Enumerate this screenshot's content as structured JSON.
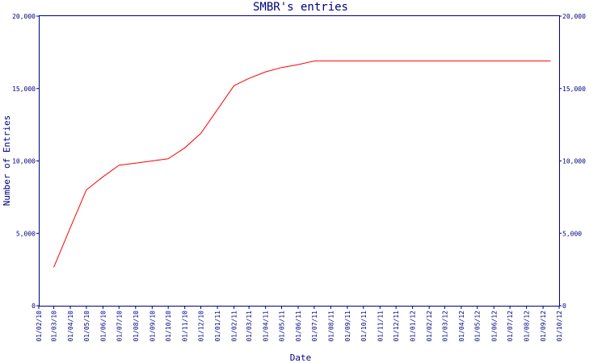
{
  "chart_data": {
    "type": "line",
    "title": "SMBR's entries",
    "xlabel": "Date",
    "ylabel": "Number of Entries",
    "ylim": [
      0,
      20000
    ],
    "y_ticks": [
      0,
      5000,
      10000,
      15000,
      20000
    ],
    "y_tick_labels": [
      "0",
      "5,000",
      "10,000",
      "15,000",
      "20,000"
    ],
    "x_tick_labels": [
      "01/02/10",
      "01/03/10",
      "01/04/10",
      "01/05/10",
      "01/06/10",
      "01/07/10",
      "01/08/10",
      "01/09/10",
      "01/10/10",
      "01/11/10",
      "01/12/10",
      "01/01/11",
      "01/02/11",
      "01/03/11",
      "01/04/11",
      "01/05/11",
      "01/06/11",
      "01/07/11",
      "01/08/11",
      "01/09/11",
      "01/10/11",
      "01/11/11",
      "01/12/11",
      "01/01/12",
      "01/02/12",
      "01/03/12",
      "01/04/12",
      "01/05/12",
      "01/06/12",
      "01/07/12",
      "01/08/12",
      "01/09/12",
      "01/10/12"
    ],
    "grid": false,
    "right_axis": true,
    "colors": {
      "axis": "#000080",
      "line": "#ff0000"
    },
    "series": [
      {
        "values": [
          {
            "x": "2010-03-01",
            "y": 2650
          },
          {
            "x": "2010-04-01",
            "y": 5400
          },
          {
            "x": "2010-05-01",
            "y": 8000
          },
          {
            "x": "2010-06-01",
            "y": 8900
          },
          {
            "x": "2010-07-01",
            "y": 9700
          },
          {
            "x": "2010-08-01",
            "y": 9850
          },
          {
            "x": "2010-09-01",
            "y": 10000
          },
          {
            "x": "2010-10-01",
            "y": 10150
          },
          {
            "x": "2010-11-01",
            "y": 10900
          },
          {
            "x": "2010-12-01",
            "y": 11900
          },
          {
            "x": "2011-01-01",
            "y": 13550
          },
          {
            "x": "2011-02-01",
            "y": 15200
          },
          {
            "x": "2011-03-01",
            "y": 15700
          },
          {
            "x": "2011-04-01",
            "y": 16150
          },
          {
            "x": "2011-05-01",
            "y": 16450
          },
          {
            "x": "2011-06-01",
            "y": 16650
          },
          {
            "x": "2011-07-01",
            "y": 16900
          },
          {
            "x": "2011-08-01",
            "y": 16900
          },
          {
            "x": "2012-09-15",
            "y": 16900
          }
        ]
      }
    ]
  }
}
